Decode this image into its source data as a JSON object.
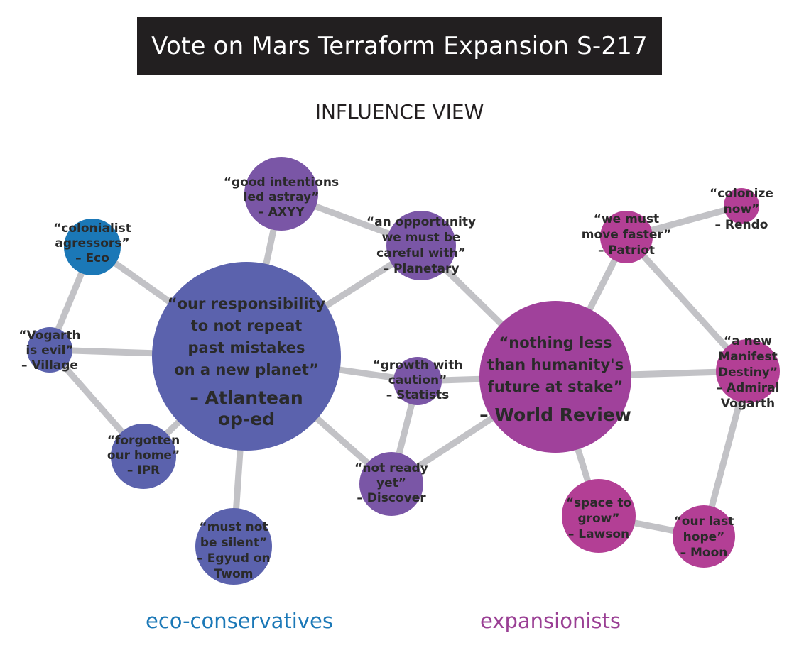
{
  "header": {
    "title": "Vote on Mars Terraform Expansion S-217"
  },
  "view_label": "INFLUENCE VIEW",
  "legend": {
    "eco": "eco-conservatives",
    "expansion": "expansionists"
  },
  "colors": {
    "edge": "#c2c2c6",
    "eco_blue": "#1b78b7",
    "eco_indigo": "#5b62ad",
    "purple": "#7a56a6",
    "magenta": "#a0419b",
    "pink": "#b33f95"
  },
  "nodes": [
    {
      "id": "atlantean",
      "quote": [
        "“our responsibility",
        "to not repeat",
        "past mistakes",
        "on a new planet”"
      ],
      "source": [
        "– Atlantean",
        "op-ed"
      ]
    },
    {
      "id": "worldreview",
      "quote": [
        "“nothing less",
        "than humanity's",
        "future at stake”"
      ],
      "source": [
        "– World Review"
      ]
    },
    {
      "id": "axyy",
      "quote": [
        "“good intentions",
        "led astray”"
      ],
      "source": [
        "– AXYY"
      ]
    },
    {
      "id": "planetary",
      "quote": [
        "“an opportunity",
        "we must be",
        "careful with”"
      ],
      "source": [
        "– Planetary"
      ]
    },
    {
      "id": "eco",
      "quote": [
        "“colonialist",
        "agressors”"
      ],
      "source": [
        "– Eco"
      ]
    },
    {
      "id": "village",
      "quote": [
        "“Vogarth",
        "is evil”"
      ],
      "source": [
        "– Village"
      ]
    },
    {
      "id": "ipr",
      "quote": [
        "“forgotten",
        "our home”"
      ],
      "source": [
        "– IPR"
      ]
    },
    {
      "id": "egyud",
      "quote": [
        "“must not",
        "be silent”"
      ],
      "source": [
        "– Egyud on",
        "Twom"
      ]
    },
    {
      "id": "statists",
      "quote": [
        "“growth with",
        "caution”"
      ],
      "source": [
        "– Statists"
      ]
    },
    {
      "id": "discover",
      "quote": [
        "“not ready",
        "yet”"
      ],
      "source": [
        "– Discover"
      ]
    },
    {
      "id": "patriot",
      "quote": [
        "“we must",
        "move faster”"
      ],
      "source": [
        "– Patriot"
      ]
    },
    {
      "id": "rendo",
      "quote": [
        "“colonize",
        "now”"
      ],
      "source": [
        "– Rendo"
      ]
    },
    {
      "id": "vogarth",
      "quote": [
        "“a new",
        "Manifest",
        "Destiny”"
      ],
      "source": [
        "– Admiral",
        "Vogarth"
      ]
    },
    {
      "id": "lawson",
      "quote": [
        "“space to",
        "grow”"
      ],
      "source": [
        "– Lawson"
      ]
    },
    {
      "id": "moon",
      "quote": [
        "“our last",
        "hope”"
      ],
      "source": [
        "– Moon"
      ]
    }
  ],
  "edges": [
    [
      "atlantean",
      "axyy"
    ],
    [
      "atlantean",
      "planetary"
    ],
    [
      "atlantean",
      "eco"
    ],
    [
      "atlantean",
      "village"
    ],
    [
      "atlantean",
      "ipr"
    ],
    [
      "atlantean",
      "egyud"
    ],
    [
      "atlantean",
      "statists"
    ],
    [
      "atlantean",
      "discover"
    ],
    [
      "eco",
      "village"
    ],
    [
      "village",
      "ipr"
    ],
    [
      "axyy",
      "planetary"
    ],
    [
      "planetary",
      "worldreview"
    ],
    [
      "statists",
      "worldreview"
    ],
    [
      "statists",
      "discover"
    ],
    [
      "discover",
      "worldreview"
    ],
    [
      "worldreview",
      "patriot"
    ],
    [
      "worldreview",
      "vogarth"
    ],
    [
      "worldreview",
      "lawson"
    ],
    [
      "patriot",
      "rendo"
    ],
    [
      "patriot",
      "vogarth"
    ],
    [
      "vogarth",
      "moon"
    ],
    [
      "lawson",
      "moon"
    ]
  ]
}
